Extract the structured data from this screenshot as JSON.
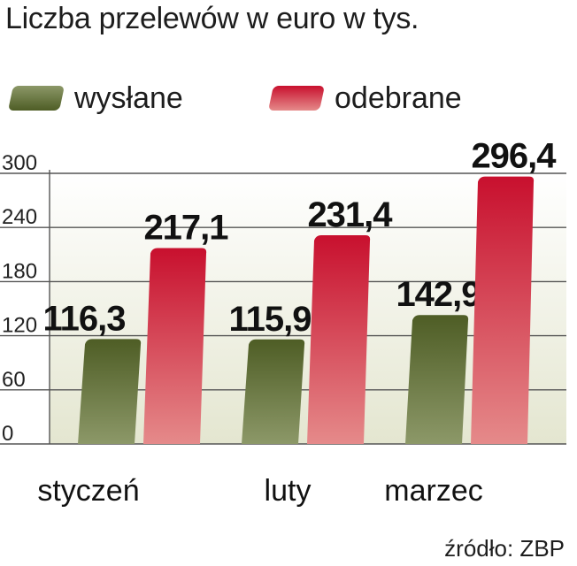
{
  "colors": {
    "sent_dark": "#4e5d25",
    "sent_light": "#8c9868",
    "received_dark": "#c8102e",
    "received_light": "#e58a8a",
    "plot_background": "#e4e6d0"
  },
  "chart_data": {
    "type": "bar",
    "title": "Liczba przelewów w euro w tys.",
    "categories": [
      "styczeń",
      "luty",
      "marzec"
    ],
    "series": [
      {
        "name": "wysłane",
        "values": [
          116.3,
          115.9,
          142.9
        ],
        "labels": [
          "116,3",
          "115,9",
          "142,9"
        ]
      },
      {
        "name": "odebrane",
        "values": [
          217.1,
          231.4,
          296.4
        ],
        "labels": [
          "217,1",
          "231,4",
          "296,4"
        ]
      }
    ],
    "yticks": [
      0,
      60,
      120,
      180,
      240,
      300
    ],
    "ylim": [
      0,
      300
    ],
    "grid": true,
    "legend_position": "top-left",
    "source": "źródło: ZBP"
  }
}
